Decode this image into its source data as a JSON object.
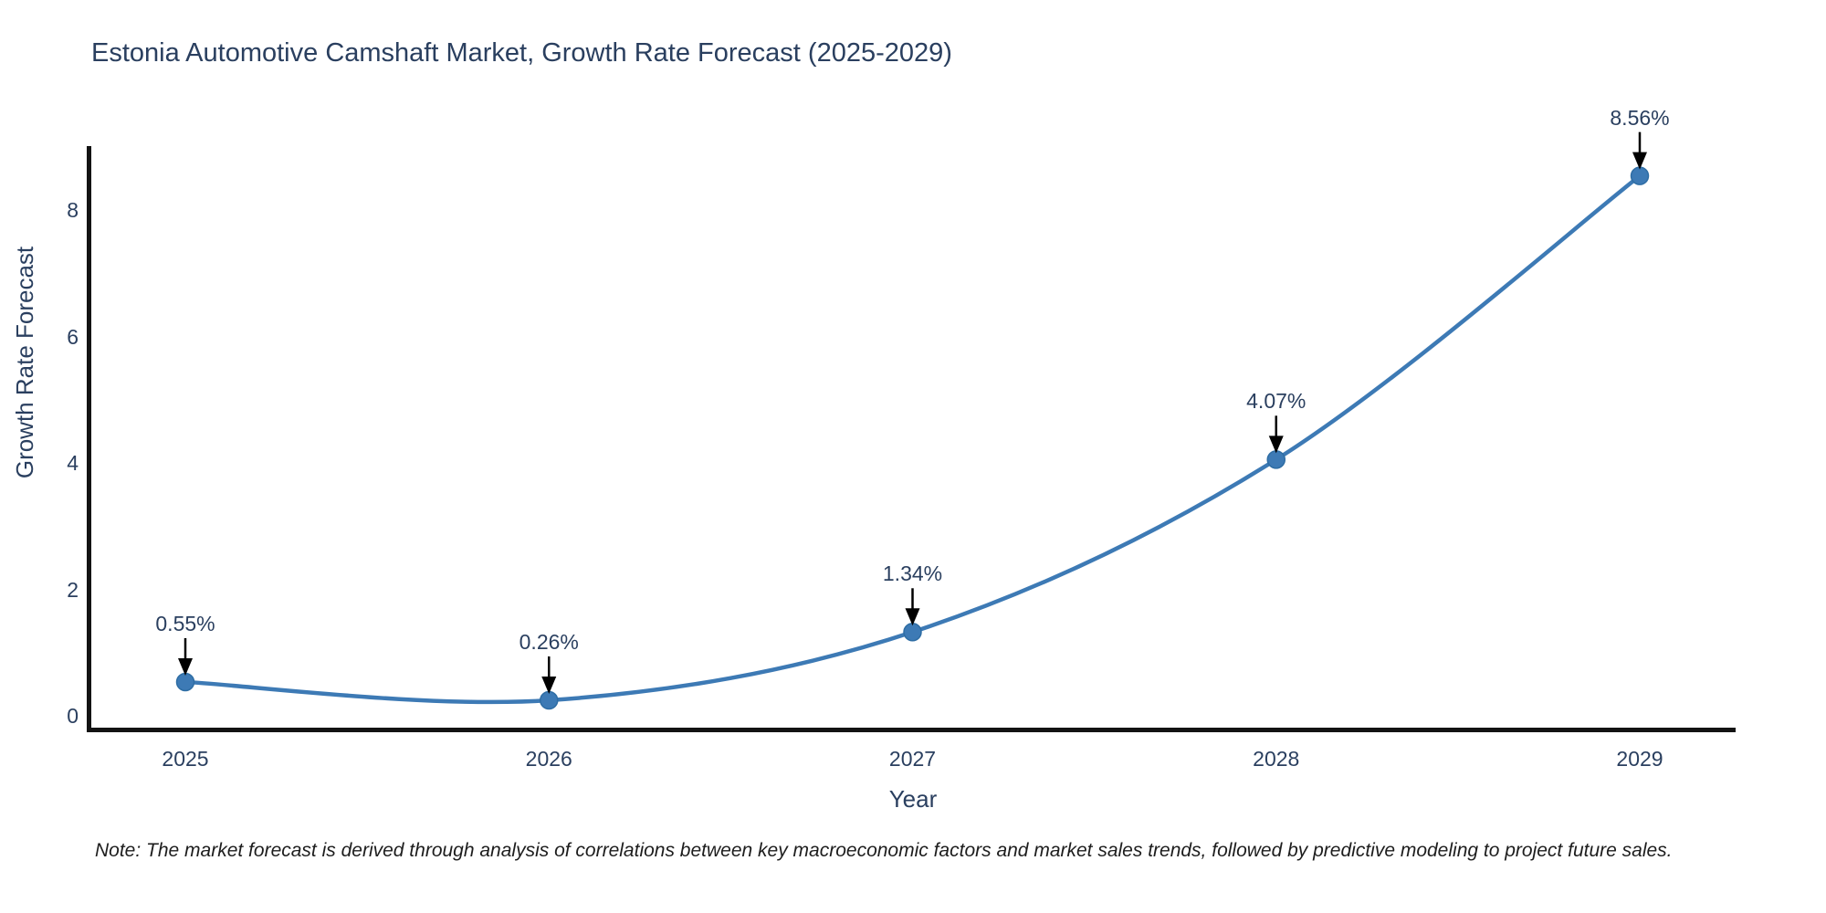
{
  "title": "Estonia Automotive Camshaft Market, Growth Rate Forecast (2025-2029)",
  "note": "Note: The market forecast is derived through analysis of correlations between key macroeconomic factors and market sales trends, followed by predictive modeling to project future sales.",
  "chart_data": {
    "type": "line",
    "title": "Estonia Automotive Camshaft Market, Growth Rate Forecast (2025-2029)",
    "xlabel": "Year",
    "ylabel": "Growth Rate Forecast",
    "categories": [
      2025,
      2026,
      2027,
      2028,
      2029
    ],
    "series": [
      {
        "name": "Growth Rate Forecast",
        "values": [
          0.55,
          0.26,
          1.34,
          4.07,
          8.56
        ]
      }
    ],
    "point_labels": [
      "0.55%",
      "0.26%",
      "1.34%",
      "4.07%",
      "8.56%"
    ],
    "yticks": [
      0,
      2,
      4,
      6,
      8
    ],
    "ylim": [
      0,
      9.3
    ],
    "grid": false,
    "legend_position": "none",
    "line_color": "#3d7ab5",
    "marker_color": "#3d7ab5",
    "marker_edge_color": "#2e6da4",
    "axis_color": "#131313",
    "text_color": "#2a3f5f",
    "annotation_arrow_color": "#000000"
  }
}
